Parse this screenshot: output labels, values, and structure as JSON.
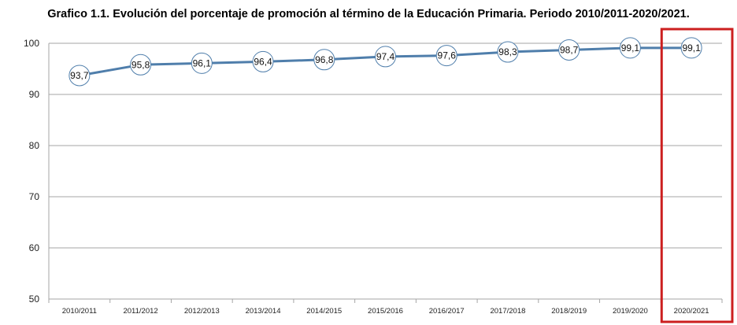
{
  "chart_data": {
    "type": "line",
    "title": "Grafico 1.1. Evolución del porcentaje de promoción al término de la Educación Primaria. Periodo 2010/2011-2020/2021.",
    "categories": [
      "2010/2011",
      "2011/2012",
      "2012/2013",
      "2013/2014",
      "2014/2015",
      "2015/2016",
      "2016/2017",
      "2017/2018",
      "2018/2019",
      "2019/2020",
      "2020/2021"
    ],
    "series": [
      {
        "values": [
          93.7,
          95.8,
          96.1,
          96.4,
          96.8,
          97.4,
          97.6,
          98.3,
          98.7,
          99.1,
          99.1
        ]
      }
    ],
    "data_labels": [
      "93,7",
      "95,8",
      "96,1",
      "96,4",
      "96,8",
      "97,4",
      "97,6",
      "98,3",
      "98,7",
      "99,1",
      "99,1"
    ],
    "y_ticks": [
      "50",
      "60",
      "70",
      "80",
      "90",
      "100"
    ],
    "ylim": [
      50,
      100
    ],
    "grid": true,
    "line_color": "#4f7eab",
    "highlight": {
      "category": "2020/2021",
      "color": "#cc1f1f"
    }
  }
}
